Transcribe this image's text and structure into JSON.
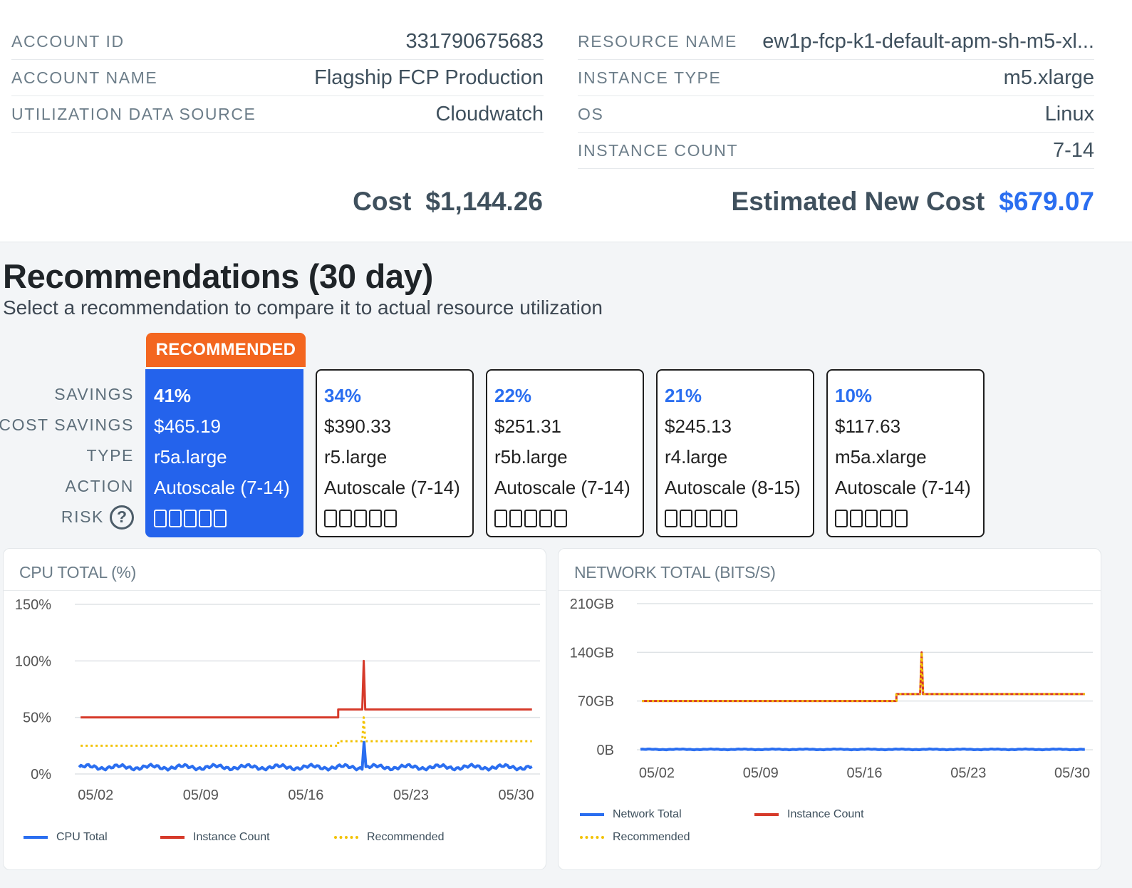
{
  "details": {
    "left": [
      {
        "label": "ACCOUNT ID",
        "value": "331790675683"
      },
      {
        "label": "ACCOUNT NAME",
        "value": "Flagship FCP Production"
      },
      {
        "label": "UTILIZATION DATA SOURCE",
        "value": "Cloudwatch"
      }
    ],
    "right": [
      {
        "label": "RESOURCE NAME",
        "value": "ew1p-fcp-k1-default-apm-sh-m5-xl..."
      },
      {
        "label": "INSTANCE TYPE",
        "value": "m5.xlarge"
      },
      {
        "label": "OS",
        "value": "Linux"
      },
      {
        "label": "INSTANCE COUNT",
        "value": "7-14"
      }
    ],
    "cost_label": "Cost",
    "cost_value": "$1,144.26",
    "new_cost_label": "Estimated New Cost",
    "new_cost_value": "$679.07",
    "accent_color": "#2a6ef0"
  },
  "recommendations": {
    "title": "Recommendations (30 day)",
    "subtitle": "Select a recommendation to compare it to actual resource utilization",
    "badge": "RECOMMENDED",
    "row_labels": [
      "SAVINGS",
      "COST SAVINGS",
      "TYPE",
      "ACTION",
      "RISK"
    ],
    "help_icon": "question-circle-icon",
    "cards": [
      {
        "savings": "41%",
        "cost_savings": "$465.19",
        "type": "r5a.large",
        "action": "Autoscale (7-14)",
        "risk_filled": 0,
        "selected": true
      },
      {
        "savings": "34%",
        "cost_savings": "$390.33",
        "type": "r5.large",
        "action": "Autoscale (7-14)",
        "risk_filled": 0,
        "selected": false
      },
      {
        "savings": "22%",
        "cost_savings": "$251.31",
        "type": "r5b.large",
        "action": "Autoscale (7-14)",
        "risk_filled": 0,
        "selected": false
      },
      {
        "savings": "21%",
        "cost_savings": "$245.13",
        "type": "r4.large",
        "action": "Autoscale (8-15)",
        "risk_filled": 0,
        "selected": false
      },
      {
        "savings": "10%",
        "cost_savings": "$117.63",
        "type": "m5a.xlarge",
        "action": "Autoscale (7-14)",
        "risk_filled": 0,
        "selected": false
      }
    ]
  },
  "chart_data": [
    {
      "type": "line",
      "title": "CPU TOTAL (%)",
      "y_ticks": [
        "150%",
        "100%",
        "50%",
        "0%"
      ],
      "ylim": [
        0,
        150
      ],
      "x_ticks": [
        "05/02",
        "05/09",
        "05/16",
        "05/23",
        "05/30"
      ],
      "x": [
        "05/01",
        "05/18",
        "05/18",
        "05/19",
        "05/19",
        "05/19",
        "05/31"
      ],
      "series": [
        {
          "name": "CPU Total",
          "color": "#2a6ef0",
          "style": "solid",
          "values": [
            6,
            6,
            6,
            6,
            28,
            6,
            6
          ]
        },
        {
          "name": "Instance Count",
          "color": "#d63a2a",
          "style": "solid",
          "values": [
            50,
            50,
            57,
            57,
            100,
            57,
            57
          ]
        },
        {
          "name": "Recommended",
          "color": "#f2c200",
          "style": "dotted",
          "values": [
            25,
            25,
            29,
            29,
            50,
            29,
            29
          ]
        }
      ],
      "grid": true,
      "legend": "bottom"
    },
    {
      "type": "line",
      "title": "NETWORK TOTAL (BITS/S)",
      "y_ticks": [
        "210GB",
        "140GB",
        "70GB",
        "0B"
      ],
      "ylim": [
        0,
        210
      ],
      "x_ticks": [
        "05/02",
        "05/09",
        "05/16",
        "05/23",
        "05/30"
      ],
      "x": [
        "05/01",
        "05/18",
        "05/18",
        "05/19",
        "05/19",
        "05/19",
        "05/31"
      ],
      "series": [
        {
          "name": "Network Total",
          "color": "#2a6ef0",
          "style": "solid",
          "values": [
            0.5,
            0.5,
            0.5,
            0.5,
            0.5,
            0.5,
            0.5
          ]
        },
        {
          "name": "Instance Count",
          "color": "#d63a2a",
          "style": "solid",
          "values": [
            70,
            70,
            80,
            80,
            140,
            80,
            80
          ]
        },
        {
          "name": "Recommended",
          "color": "#f2c200",
          "style": "dotted",
          "values": [
            70,
            70,
            80,
            80,
            140,
            80,
            80
          ]
        }
      ],
      "grid": true,
      "legend": "bottom"
    }
  ]
}
